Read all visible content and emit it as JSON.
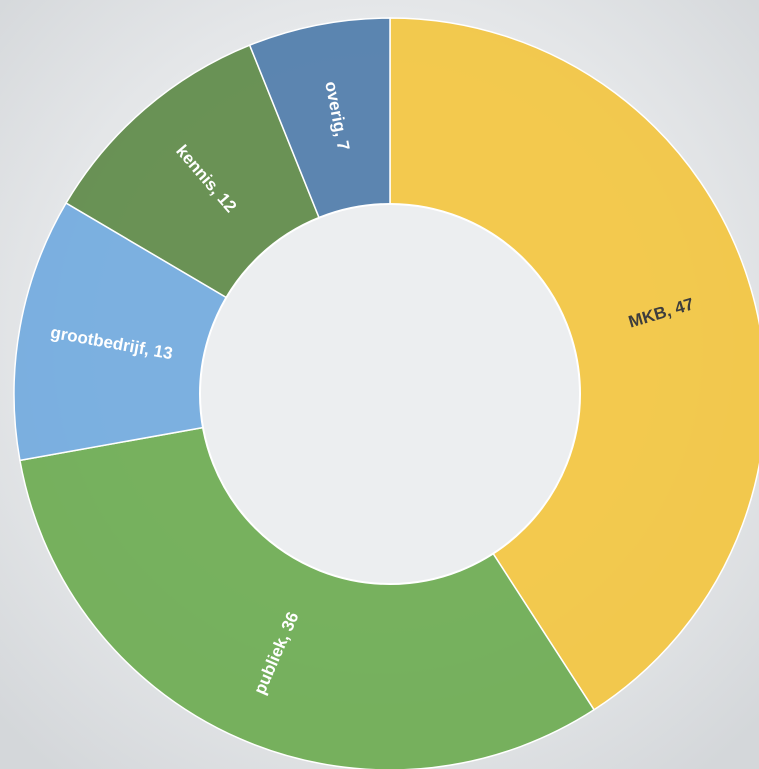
{
  "chart_data": {
    "type": "donut",
    "categories": [
      "MKB",
      "publiek",
      "grootbedrijf",
      "kennis",
      "overig"
    ],
    "values": [
      47,
      36,
      13,
      12,
      7
    ],
    "value_labels": [
      "MKB, 47",
      "publiek, 36",
      "grootbedrijf, 13",
      "kennis, 12",
      "overig, 7"
    ],
    "colors": [
      "#f3c640",
      "#6dab51",
      "#72aade",
      "#5e8a48",
      "#4f7caa"
    ]
  }
}
